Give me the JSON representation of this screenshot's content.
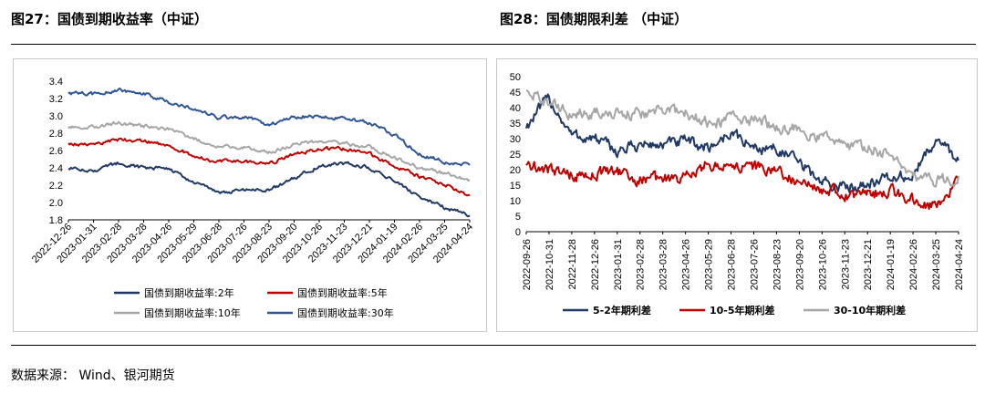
{
  "figures": [
    {
      "title": "图27：国债到期收益率（中证）"
    },
    {
      "title": "图28：国债期限利差 （中证）"
    }
  ],
  "source": "数据来源： Wind、银河期货",
  "chart_data": [
    {
      "type": "line",
      "ylim": [
        1.8,
        3.4
      ],
      "yticks": [
        "1.8",
        "2.0",
        "2.2",
        "2.4",
        "2.6",
        "2.8",
        "3.0",
        "3.2",
        "3.4"
      ],
      "xtick_labels": [
        "2022-12-26",
        "2023-01-31",
        "2023-02-28",
        "2023-03-28",
        "2023-04-26",
        "2023-05-29",
        "2023-06-28",
        "2023-07-26",
        "2023-08-23",
        "2023-09-20",
        "2023-10-26",
        "2023-11-23",
        "2023-12-21",
        "2024-01-19",
        "2024-02-26",
        "2024-03-25",
        "2024-04-24"
      ],
      "x": [
        "2022-12-26",
        "2023-01-31",
        "2023-02-28",
        "2023-03-28",
        "2023-04-26",
        "2023-05-29",
        "2023-06-28",
        "2023-07-26",
        "2023-08-23",
        "2023-09-20",
        "2023-10-26",
        "2023-11-23",
        "2023-12-21",
        "2024-01-19",
        "2024-02-26",
        "2024-03-25",
        "2024-04-24"
      ],
      "series": [
        {
          "name": "国债到期收益率:2年",
          "color": "#1f3864",
          "values": [
            2.4,
            2.36,
            2.46,
            2.4,
            2.4,
            2.22,
            2.12,
            2.14,
            2.14,
            2.28,
            2.42,
            2.45,
            2.4,
            2.24,
            2.06,
            1.94,
            1.85
          ]
        },
        {
          "name": "国债到期收益率:5年",
          "color": "#c00000",
          "values": [
            2.69,
            2.66,
            2.72,
            2.72,
            2.66,
            2.53,
            2.48,
            2.47,
            2.45,
            2.55,
            2.62,
            2.62,
            2.56,
            2.42,
            2.3,
            2.21,
            2.08
          ]
        },
        {
          "name": "国债到期收益率:10年",
          "color": "#a6a6a6",
          "values": [
            2.86,
            2.87,
            2.92,
            2.88,
            2.84,
            2.74,
            2.64,
            2.64,
            2.58,
            2.67,
            2.71,
            2.68,
            2.64,
            2.52,
            2.4,
            2.34,
            2.26
          ]
        },
        {
          "name": "国债到期收益率:30年",
          "color": "#2f5597",
          "values": [
            3.26,
            3.25,
            3.3,
            3.26,
            3.16,
            3.08,
            2.98,
            2.99,
            2.9,
            2.99,
            3.0,
            2.96,
            2.92,
            2.78,
            2.56,
            2.47,
            2.43
          ]
        }
      ],
      "legend": "bottom",
      "grid": false
    },
    {
      "type": "line",
      "ylim": [
        0,
        50
      ],
      "yticks": [
        "0",
        "5",
        "10",
        "15",
        "20",
        "25",
        "30",
        "35",
        "40",
        "45",
        "50"
      ],
      "xtick_labels": [
        "2022-09-26",
        "2022-10-31",
        "2022-11-28",
        "2022-12-26",
        "2023-01-31",
        "2023-02-28",
        "2023-03-28",
        "2023-04-26",
        "2023-05-29",
        "2023-06-28",
        "2023-07-26",
        "2023-08-23",
        "2023-09-20",
        "2023-10-26",
        "2023-11-23",
        "2023-12-21",
        "2024-01-19",
        "2024-02-26",
        "2024-03-25",
        "2024-04-24"
      ],
      "x": [
        "2022-09-26",
        "2022-10-31",
        "2022-11-28",
        "2022-12-26",
        "2023-01-31",
        "2023-02-28",
        "2023-03-28",
        "2023-04-26",
        "2023-05-29",
        "2023-06-28",
        "2023-07-26",
        "2023-08-23",
        "2023-09-20",
        "2023-10-26",
        "2023-11-23",
        "2023-12-21",
        "2024-01-19",
        "2024-02-26",
        "2024-03-25",
        "2024-04-24"
      ],
      "series": [
        {
          "name": "5-2年期利差",
          "color": "#1f3864",
          "values": [
            34,
            43,
            31,
            30,
            26,
            28,
            28,
            29,
            27,
            32,
            27,
            27,
            22,
            16,
            14,
            16,
            17,
            18,
            30,
            23
          ]
        },
        {
          "name": "10-5年期利差",
          "color": "#c00000",
          "values": [
            22,
            20,
            18,
            19,
            19,
            17,
            17,
            17,
            22,
            21,
            21,
            20,
            15,
            14,
            12,
            12,
            13,
            10,
            8,
            17
          ]
        },
        {
          "name": "30-10年期利差",
          "color": "#a6a6a6",
          "values": [
            46,
            41,
            38,
            38,
            38,
            38,
            39,
            38,
            35,
            36,
            36,
            34,
            33,
            30,
            28,
            27,
            25,
            18,
            16,
            18
          ]
        }
      ],
      "legend": "bottom",
      "grid": false
    }
  ]
}
